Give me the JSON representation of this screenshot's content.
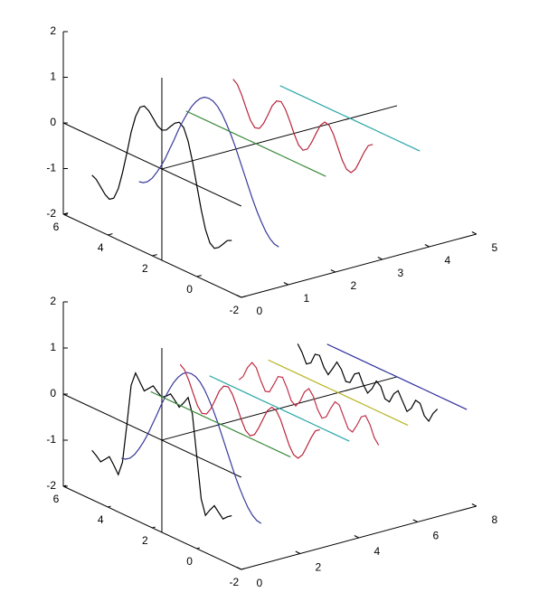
{
  "chart_data": [
    {
      "type": "line3d",
      "xlim": [
        0,
        5
      ],
      "ylim": [
        -2,
        6
      ],
      "zlim": [
        -2,
        2
      ],
      "xticks": [
        0,
        1,
        2,
        3,
        4,
        5
      ],
      "yticks": [
        6,
        4,
        2,
        0,
        -2
      ],
      "zticks": [
        2,
        1,
        0,
        -1,
        -2
      ],
      "y": [
        -1.57,
        -1.37,
        -1.18,
        -0.98,
        -0.79,
        -0.59,
        -0.39,
        -0.2,
        0,
        0.2,
        0.39,
        0.59,
        0.79,
        0.98,
        1.18,
        1.37,
        1.57,
        1.77,
        1.96,
        2.16,
        2.36,
        2.55,
        2.75,
        2.95,
        3.14,
        3.34,
        3.53,
        3.73,
        3.93,
        4.12,
        4.32,
        4.52,
        4.71
      ],
      "series": [
        {
          "color": "#000000",
          "x": 0,
          "values": [
            -0.85,
            -0.9,
            -1.02,
            -1.14,
            -1.2,
            -1.13,
            -0.88,
            -0.49,
            0,
            0.49,
            0.88,
            1.13,
            1.2,
            1.14,
            1.02,
            0.9,
            0.85,
            0.9,
            1.02,
            1.14,
            1.2,
            1.13,
            0.88,
            0.49,
            0,
            -0.49,
            -0.88,
            -1.13,
            -1.2,
            -1.14,
            -1.02,
            -0.9,
            -0.85
          ]
        },
        {
          "color": "#38389a",
          "x": 1,
          "values": [
            -1.27,
            -1.25,
            -1.18,
            -1.06,
            -0.9,
            -0.71,
            -0.49,
            -0.25,
            0,
            0.25,
            0.49,
            0.71,
            0.9,
            1.06,
            1.18,
            1.25,
            1.27,
            1.25,
            1.18,
            1.06,
            0.9,
            0.71,
            0.49,
            0.25,
            0,
            -0.25,
            -0.49,
            -0.71,
            -0.9,
            -1.06,
            -1.18,
            -1.25,
            -1.27
          ]
        },
        {
          "color": "#3d8a3d",
          "x": 2,
          "values": [
            0,
            0,
            0,
            0,
            0,
            0,
            0,
            0,
            0,
            0,
            0,
            0,
            0,
            0,
            0,
            0,
            0,
            0,
            0,
            0,
            0,
            0,
            0,
            0,
            0,
            0,
            0,
            0,
            0,
            0,
            0,
            0,
            0
          ]
        },
        {
          "color": "#b8243c",
          "x": 3,
          "values": [
            0.42,
            0.35,
            0.16,
            -0.08,
            -0.3,
            -0.42,
            -0.39,
            -0.24,
            0,
            0.24,
            0.39,
            0.42,
            0.3,
            0.08,
            -0.16,
            -0.35,
            -0.42,
            -0.35,
            -0.16,
            0.08,
            0.3,
            0.42,
            0.39,
            0.24,
            0,
            -0.24,
            -0.39,
            -0.42,
            -0.3,
            -0.08,
            0.16,
            0.35,
            0.42
          ]
        },
        {
          "color": "#2aa6a6",
          "x": 4,
          "values": [
            0,
            0,
            0,
            0,
            0,
            0,
            0,
            0,
            0,
            0,
            0,
            0,
            0,
            0,
            0,
            0,
            0,
            0,
            0,
            0,
            0,
            0,
            0,
            0,
            0,
            0,
            0,
            0,
            0,
            0,
            0,
            0,
            0
          ]
        }
      ]
    },
    {
      "type": "line3d",
      "xlim": [
        0,
        8
      ],
      "ylim": [
        -2,
        6
      ],
      "zlim": [
        -2,
        2
      ],
      "xticks": [
        0,
        2,
        4,
        6,
        8
      ],
      "yticks": [
        6,
        4,
        2,
        0,
        -2
      ],
      "zticks": [
        2,
        1,
        0,
        -1,
        -2
      ],
      "y": [
        -1.57,
        -1.37,
        -1.18,
        -0.98,
        -0.79,
        -0.59,
        -0.39,
        -0.2,
        0,
        0.2,
        0.39,
        0.59,
        0.79,
        0.98,
        1.18,
        1.37,
        1.57,
        1.77,
        1.96,
        2.16,
        2.36,
        2.55,
        2.75,
        2.95,
        3.14,
        3.34,
        3.53,
        3.73,
        3.93,
        4.12,
        4.32,
        4.52,
        4.71
      ],
      "series": [
        {
          "color": "#000000",
          "x": 0,
          "values": [
            -0.93,
            -1,
            -1.09,
            -0.99,
            -0.89,
            -1.03,
            -1.19,
            -0.88,
            0,
            0.88,
            1.19,
            1.03,
            0.89,
            0.99,
            1.09,
            1,
            0.93,
            1,
            1.09,
            0.99,
            0.89,
            1.03,
            1.19,
            0.88,
            0,
            -0.88,
            -1.19,
            -1.03,
            -0.89,
            -0.99,
            -1.09,
            -1,
            -0.93
          ]
        },
        {
          "color": "#38389a",
          "x": 1,
          "values": [
            -1.27,
            -1.25,
            -1.18,
            -1.06,
            -0.9,
            -0.71,
            -0.49,
            -0.25,
            0,
            0.25,
            0.49,
            0.71,
            0.9,
            1.06,
            1.18,
            1.25,
            1.27,
            1.25,
            1.18,
            1.06,
            0.9,
            0.71,
            0.49,
            0.25,
            0,
            -0.25,
            -0.49,
            -0.71,
            -0.9,
            -1.06,
            -1.18,
            -1.25,
            -1.27
          ]
        },
        {
          "color": "#3d8a3d",
          "x": 2,
          "values": [
            0,
            0,
            0,
            0,
            0,
            0,
            0,
            0,
            0,
            0,
            0,
            0,
            0,
            0,
            0,
            0,
            0,
            0,
            0,
            0,
            0,
            0,
            0,
            0,
            0,
            0,
            0,
            0,
            0,
            0,
            0,
            0,
            0
          ]
        },
        {
          "color": "#b8243c",
          "x": 3,
          "values": [
            0.42,
            0.35,
            0.16,
            -0.08,
            -0.3,
            -0.42,
            -0.39,
            -0.24,
            0,
            0.24,
            0.39,
            0.42,
            0.3,
            0.08,
            -0.16,
            -0.35,
            -0.42,
            -0.35,
            -0.16,
            0.08,
            0.3,
            0.42,
            0.39,
            0.24,
            0,
            -0.24,
            -0.39,
            -0.42,
            -0.3,
            -0.08,
            0.16,
            0.35,
            0.42
          ]
        },
        {
          "color": "#2aa6a6",
          "x": 4,
          "values": [
            0,
            0,
            0,
            0,
            0,
            0,
            0,
            0,
            0,
            0,
            0,
            0,
            0,
            0,
            0,
            0,
            0,
            0,
            0,
            0,
            0,
            0,
            0,
            0,
            0,
            0,
            0,
            0,
            0,
            0,
            0,
            0,
            0
          ]
        },
        {
          "color": "#c03048",
          "x": 5,
          "values": [
            -0.26,
            -0.14,
            0.1,
            0.25,
            0.18,
            -0.05,
            -0.24,
            -0.21,
            0,
            0.21,
            0.24,
            0.05,
            -0.18,
            -0.25,
            -0.1,
            0.14,
            0.26,
            0.14,
            -0.1,
            -0.25,
            -0.18,
            0.05,
            0.24,
            0.21,
            0,
            -0.21,
            -0.24,
            -0.05,
            0.18,
            0.25,
            0.1,
            -0.14,
            -0.26
          ]
        },
        {
          "color": "#b8b424",
          "x": 6,
          "values": [
            0,
            0,
            0,
            0,
            0,
            0,
            0,
            0,
            0,
            0,
            0,
            0,
            0,
            0,
            0,
            0,
            0,
            0,
            0,
            0,
            0,
            0,
            0,
            0,
            0,
            0,
            0,
            0,
            0,
            0,
            0,
            0,
            0
          ]
        },
        {
          "color": "#000000",
          "x": 7,
          "values": [
            0.18,
            0.04,
            -0.17,
            -0.1,
            0.13,
            0.15,
            -0.07,
            -0.18,
            0,
            0.18,
            0.07,
            -0.15,
            -0.13,
            0.1,
            0.17,
            -0.04,
            -0.18,
            -0.04,
            0.17,
            0.1,
            -0.13,
            -0.15,
            0.07,
            0.18,
            0,
            -0.18,
            -0.07,
            0.15,
            0.13,
            -0.1,
            -0.17,
            0.04,
            0.18
          ]
        },
        {
          "color": "#30309c",
          "x": 8,
          "values": [
            0,
            0,
            0,
            0,
            0,
            0,
            0,
            0,
            0,
            0,
            0,
            0,
            0,
            0,
            0,
            0,
            0,
            0,
            0,
            0,
            0,
            0,
            0,
            0,
            0,
            0,
            0,
            0,
            0,
            0,
            0,
            0,
            0
          ]
        }
      ]
    }
  ]
}
